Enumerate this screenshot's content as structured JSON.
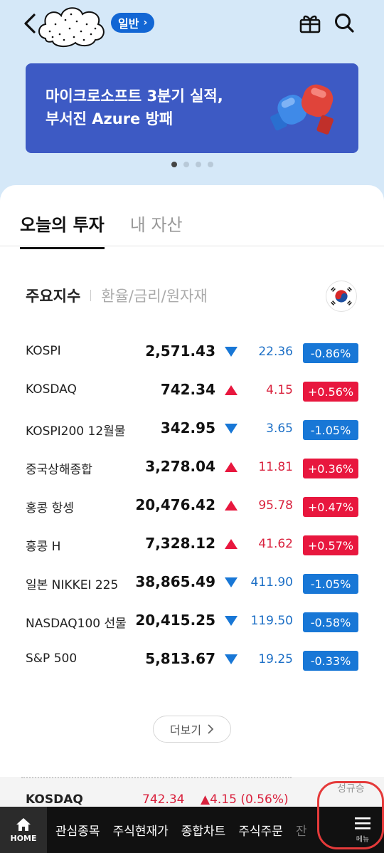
{
  "header": {
    "badge_label": "일반",
    "badge_chevron": "›",
    "icons": [
      "back-arrow-icon",
      "avatar-cloud-icon",
      "gift-icon",
      "search-icon"
    ]
  },
  "banner": {
    "title_line1": "마이크로소프트 3분기 실적,",
    "title_line2": "부서진 Azure 방패",
    "background": "#3d5ac4",
    "page_count": 4,
    "active_page": 1
  },
  "tabs": [
    {
      "label": "오늘의 투자",
      "active": true
    },
    {
      "label": "내 자산",
      "active": false
    }
  ],
  "subtabs": [
    {
      "label": "주요지수",
      "active": true
    },
    {
      "label": "환율/금리/원자재",
      "active": false
    }
  ],
  "indices": [
    {
      "name": "KOSPI",
      "price": "2,571.43",
      "dir": "down",
      "change": "22.36",
      "pct": "-0.86%"
    },
    {
      "name": "KOSDAQ",
      "price": "742.34",
      "dir": "up",
      "change": "4.15",
      "pct": "+0.56%"
    },
    {
      "name": "KOSPI200 12월물",
      "price": "342.95",
      "dir": "down",
      "change": "3.65",
      "pct": "-1.05%"
    },
    {
      "name": "중국상해종합",
      "price": "3,278.04",
      "dir": "up",
      "change": "11.81",
      "pct": "+0.36%"
    },
    {
      "name": "홍콩 항셍",
      "price": "20,476.42",
      "dir": "up",
      "change": "95.78",
      "pct": "+0.47%"
    },
    {
      "name": "홍콩 H",
      "price": "7,328.12",
      "dir": "up",
      "change": "41.62",
      "pct": "+0.57%"
    },
    {
      "name": "일본 NIKKEI 225",
      "price": "38,865.49",
      "dir": "down",
      "change": "411.90",
      "pct": "-1.05%"
    },
    {
      "name": "NASDAQ100 선물",
      "price": "20,415.25",
      "dir": "down",
      "change": "119.50",
      "pct": "-0.58%"
    },
    {
      "name": "S&P 500",
      "price": "5,813.67",
      "dir": "down",
      "change": "19.25",
      "pct": "-0.33%"
    }
  ],
  "more_label": "더보기",
  "ticker": {
    "name": "KOSDAQ",
    "price": "742.34",
    "change": "▲4.15 (0.56%)",
    "user": "성규승"
  },
  "bottom_nav": {
    "home_label": "HOME",
    "items": [
      "관심종목",
      "주식현재가",
      "종합차트",
      "주식주문",
      "잔"
    ],
    "menu_label": "메뉴"
  },
  "colors": {
    "up": "#e8173e",
    "down": "#1877d6",
    "accent": "#1266d4",
    "highlight": "#e53a3a"
  }
}
